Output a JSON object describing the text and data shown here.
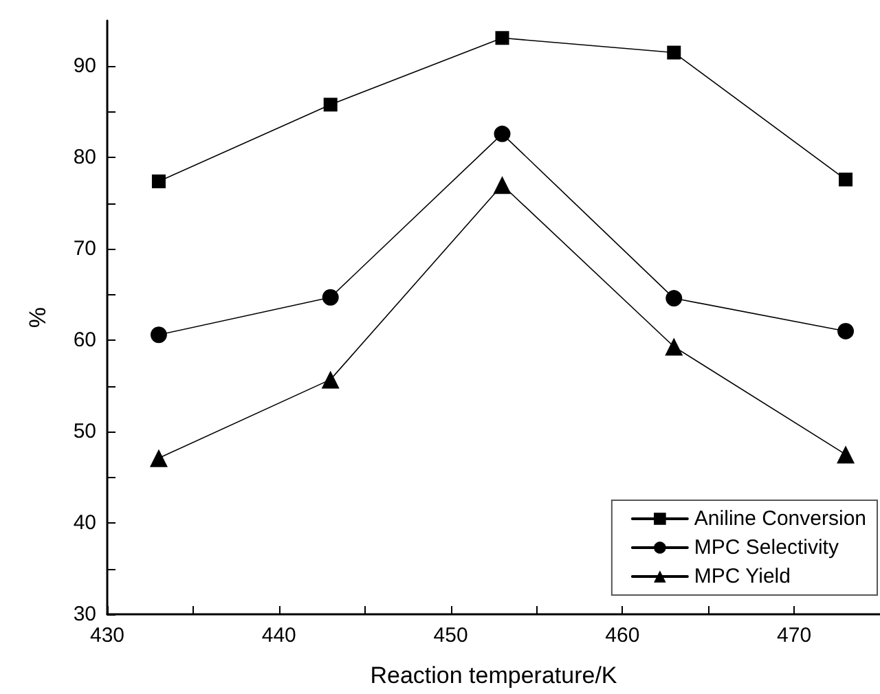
{
  "chart_data": {
    "type": "line",
    "xlabel": "Reaction temperature/K",
    "ylabel": "%",
    "x": [
      433,
      443,
      453,
      463,
      473
    ],
    "series": [
      {
        "name": "Aniline Conversion",
        "color": "#000000",
        "marker": "square",
        "values": [
          77.4,
          85.8,
          93.1,
          91.5,
          77.6
        ]
      },
      {
        "name": "MPC Selectivity",
        "color": "#000000",
        "marker": "circle",
        "values": [
          60.6,
          64.7,
          82.6,
          64.6,
          61.0
        ]
      },
      {
        "name": "MPC Yield",
        "color": "#000000",
        "marker": "triangle",
        "values": [
          47.1,
          55.7,
          77.0,
          59.3,
          47.5
        ]
      }
    ],
    "xlim": [
      430,
      475
    ],
    "xticks": [
      430,
      440,
      450,
      460,
      470
    ],
    "ylim": [
      30,
      95
    ],
    "yticks": [
      30,
      40,
      50,
      60,
      70,
      80,
      90
    ],
    "grid": false,
    "legend": "bottom right",
    "line_style": "solid"
  }
}
